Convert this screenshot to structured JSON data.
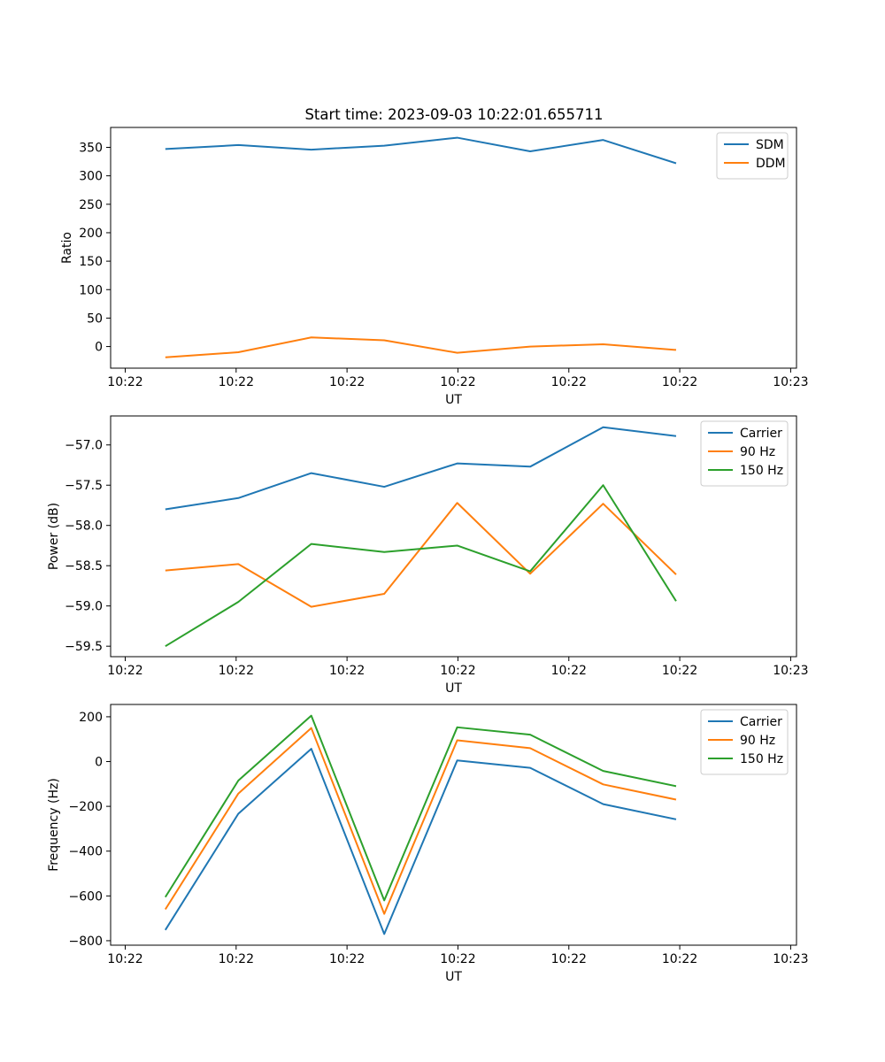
{
  "figure_title": "Start time: 2023-09-03 10:22:01.655711",
  "chart_data": [
    {
      "type": "line",
      "title": "Start time: 2023-09-03 10:22:01.655711",
      "xlabel": "UT",
      "ylabel": "Ratio",
      "legend_position": "top-right",
      "grid": false,
      "xticks": [
        "10:22",
        "10:22",
        "10:22",
        "10:22",
        "10:22",
        "10:22",
        "10:23"
      ],
      "yticks": [
        "0",
        "50",
        "100",
        "150",
        "200",
        "250",
        "300",
        "350"
      ],
      "ylim": [
        -38,
        385
      ],
      "x": [
        1,
        2,
        3,
        4,
        5,
        6,
        7,
        8
      ],
      "series": [
        {
          "name": "SDM",
          "color": "#1f77b4",
          "values": [
            347,
            354,
            346,
            353,
            367,
            343,
            363,
            322
          ]
        },
        {
          "name": "DDM",
          "color": "#ff7f0e",
          "values": [
            -19,
            -10,
            16,
            11,
            -11,
            0,
            4,
            -6
          ]
        }
      ]
    },
    {
      "type": "line",
      "xlabel": "UT",
      "ylabel": "Power (dB)",
      "legend_position": "top-right",
      "grid": false,
      "xticks": [
        "10:22",
        "10:22",
        "10:22",
        "10:22",
        "10:22",
        "10:22",
        "10:23"
      ],
      "yticks": [
        "−59.5",
        "−59.0",
        "−58.5",
        "−58.0",
        "−57.5",
        "−57.0"
      ],
      "ylim": [
        -59.63,
        -56.64
      ],
      "x": [
        1,
        2,
        3,
        4,
        5,
        6,
        7,
        8
      ],
      "series": [
        {
          "name": "Carrier",
          "color": "#1f77b4",
          "values": [
            -57.8,
            -57.66,
            -57.35,
            -57.52,
            -57.23,
            -57.27,
            -56.78,
            -56.89
          ]
        },
        {
          "name": "90 Hz",
          "color": "#ff7f0e",
          "values": [
            -58.56,
            -58.48,
            -59.01,
            -58.85,
            -57.72,
            -58.6,
            -57.73,
            -58.61
          ]
        },
        {
          "name": "150 Hz",
          "color": "#2ca02c",
          "values": [
            -59.5,
            -58.95,
            -58.23,
            -58.33,
            -58.25,
            -58.57,
            -57.5,
            -58.94
          ]
        }
      ]
    },
    {
      "type": "line",
      "xlabel": "UT",
      "ylabel": "Frequency (Hz)",
      "legend_position": "top-right",
      "grid": false,
      "xticks": [
        "10:22",
        "10:22",
        "10:22",
        "10:22",
        "10:22",
        "10:22",
        "10:23"
      ],
      "yticks": [
        "−800",
        "−600",
        "−400",
        "−200",
        "0",
        "200"
      ],
      "ylim": [
        -820,
        255
      ],
      "x": [
        1,
        2,
        3,
        4,
        5,
        6,
        7,
        8
      ],
      "series": [
        {
          "name": "Carrier",
          "color": "#1f77b4",
          "values": [
            -752,
            -233,
            57,
            -770,
            5,
            -28,
            -190,
            -258
          ]
        },
        {
          "name": "90 Hz",
          "color": "#ff7f0e",
          "values": [
            -660,
            -143,
            150,
            -680,
            95,
            60,
            -102,
            -170
          ]
        },
        {
          "name": "150 Hz",
          "color": "#2ca02c",
          "values": [
            -605,
            -85,
            205,
            -620,
            153,
            120,
            -42,
            -110
          ]
        }
      ]
    }
  ]
}
